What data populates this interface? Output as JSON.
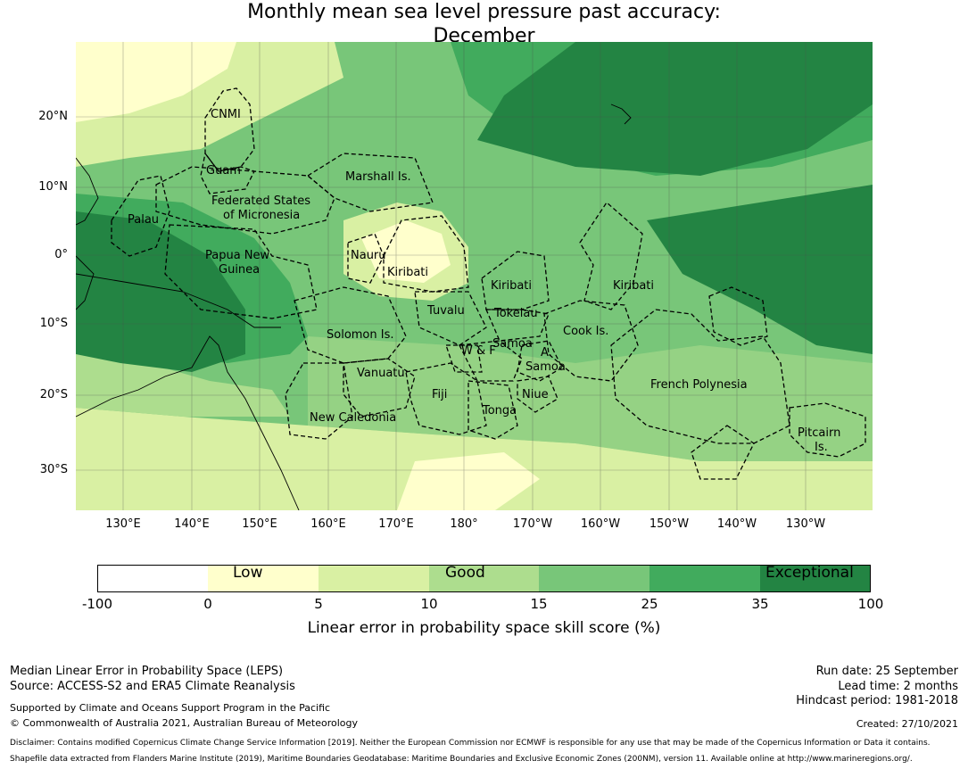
{
  "title": {
    "line1": "Monthly mean sea level pressure past accuracy:",
    "line2": "December"
  },
  "map": {
    "lat_labels": [
      "20°N",
      "10°N",
      "0°",
      "10°S",
      "20°S",
      "30°S"
    ],
    "lon_labels": [
      "130°E",
      "140°E",
      "150°E",
      "160°E",
      "170°E",
      "180°",
      "170°W",
      "160°W",
      "150°W",
      "140°W",
      "130°W"
    ],
    "regions": [
      "CNMI",
      "Guam",
      "Marshall Is.",
      "Federated States",
      "of Micronesia",
      "Palau",
      "Papua New",
      "Guinea",
      "Nauru",
      "Kiribati",
      "Kiribati",
      "Kiribati",
      "Tuvalu",
      "Tokelau",
      "Solomon Is.",
      "Samoa",
      "A.",
      "Samoa",
      "W & F",
      "Cook Is.",
      "Vanuatu",
      "Fiji",
      "Niue",
      "Tonga",
      "New Caledonia",
      "French Polynesia",
      "Pitcairn",
      "Is."
    ]
  },
  "legend": {
    "ticks": [
      "-100",
      "0",
      "5",
      "10",
      "15",
      "25",
      "35",
      "100"
    ],
    "categories": [
      "Low",
      "Good",
      "Exceptional"
    ],
    "colors": [
      "#ffffff",
      "#ffffcc",
      "#d9f0a3",
      "#addd8e",
      "#78c679",
      "#41ab5d",
      "#238443"
    ],
    "title": "Linear error in probability space skill score (%)"
  },
  "footer": {
    "left1": "Median Linear Error in Probability Space (LEPS)",
    "left2": "Source: ACCESS-S2 and ERA5 Climate Reanalysis",
    "left3": "Supported by Climate and Oceans Support Program in the Pacific",
    "left4": "© Commonwealth of Australia 2021, Australian Bureau of Meteorology",
    "right1": "Run date: 25 September",
    "right2": "Lead time: 2 months",
    "right3": "Hindcast period: 1981-2018",
    "right4": "Created: 27/10/2021",
    "disclaimer1": "Disclaimer: Contains modified Copernicus Climate Change Service Information [2019]. Neither the European Commission nor ECMWF is responsible for any use that may be made of the Copernicus Information or Data it contains.",
    "disclaimer2": "Shapefile data extracted from Flanders Marine Institute (2019), Maritime Boundaries Geodatabase: Maritime Boundaries and Exclusive Economic Zones (200NM), version 11. Available online at http://www.marineregions.org/."
  }
}
